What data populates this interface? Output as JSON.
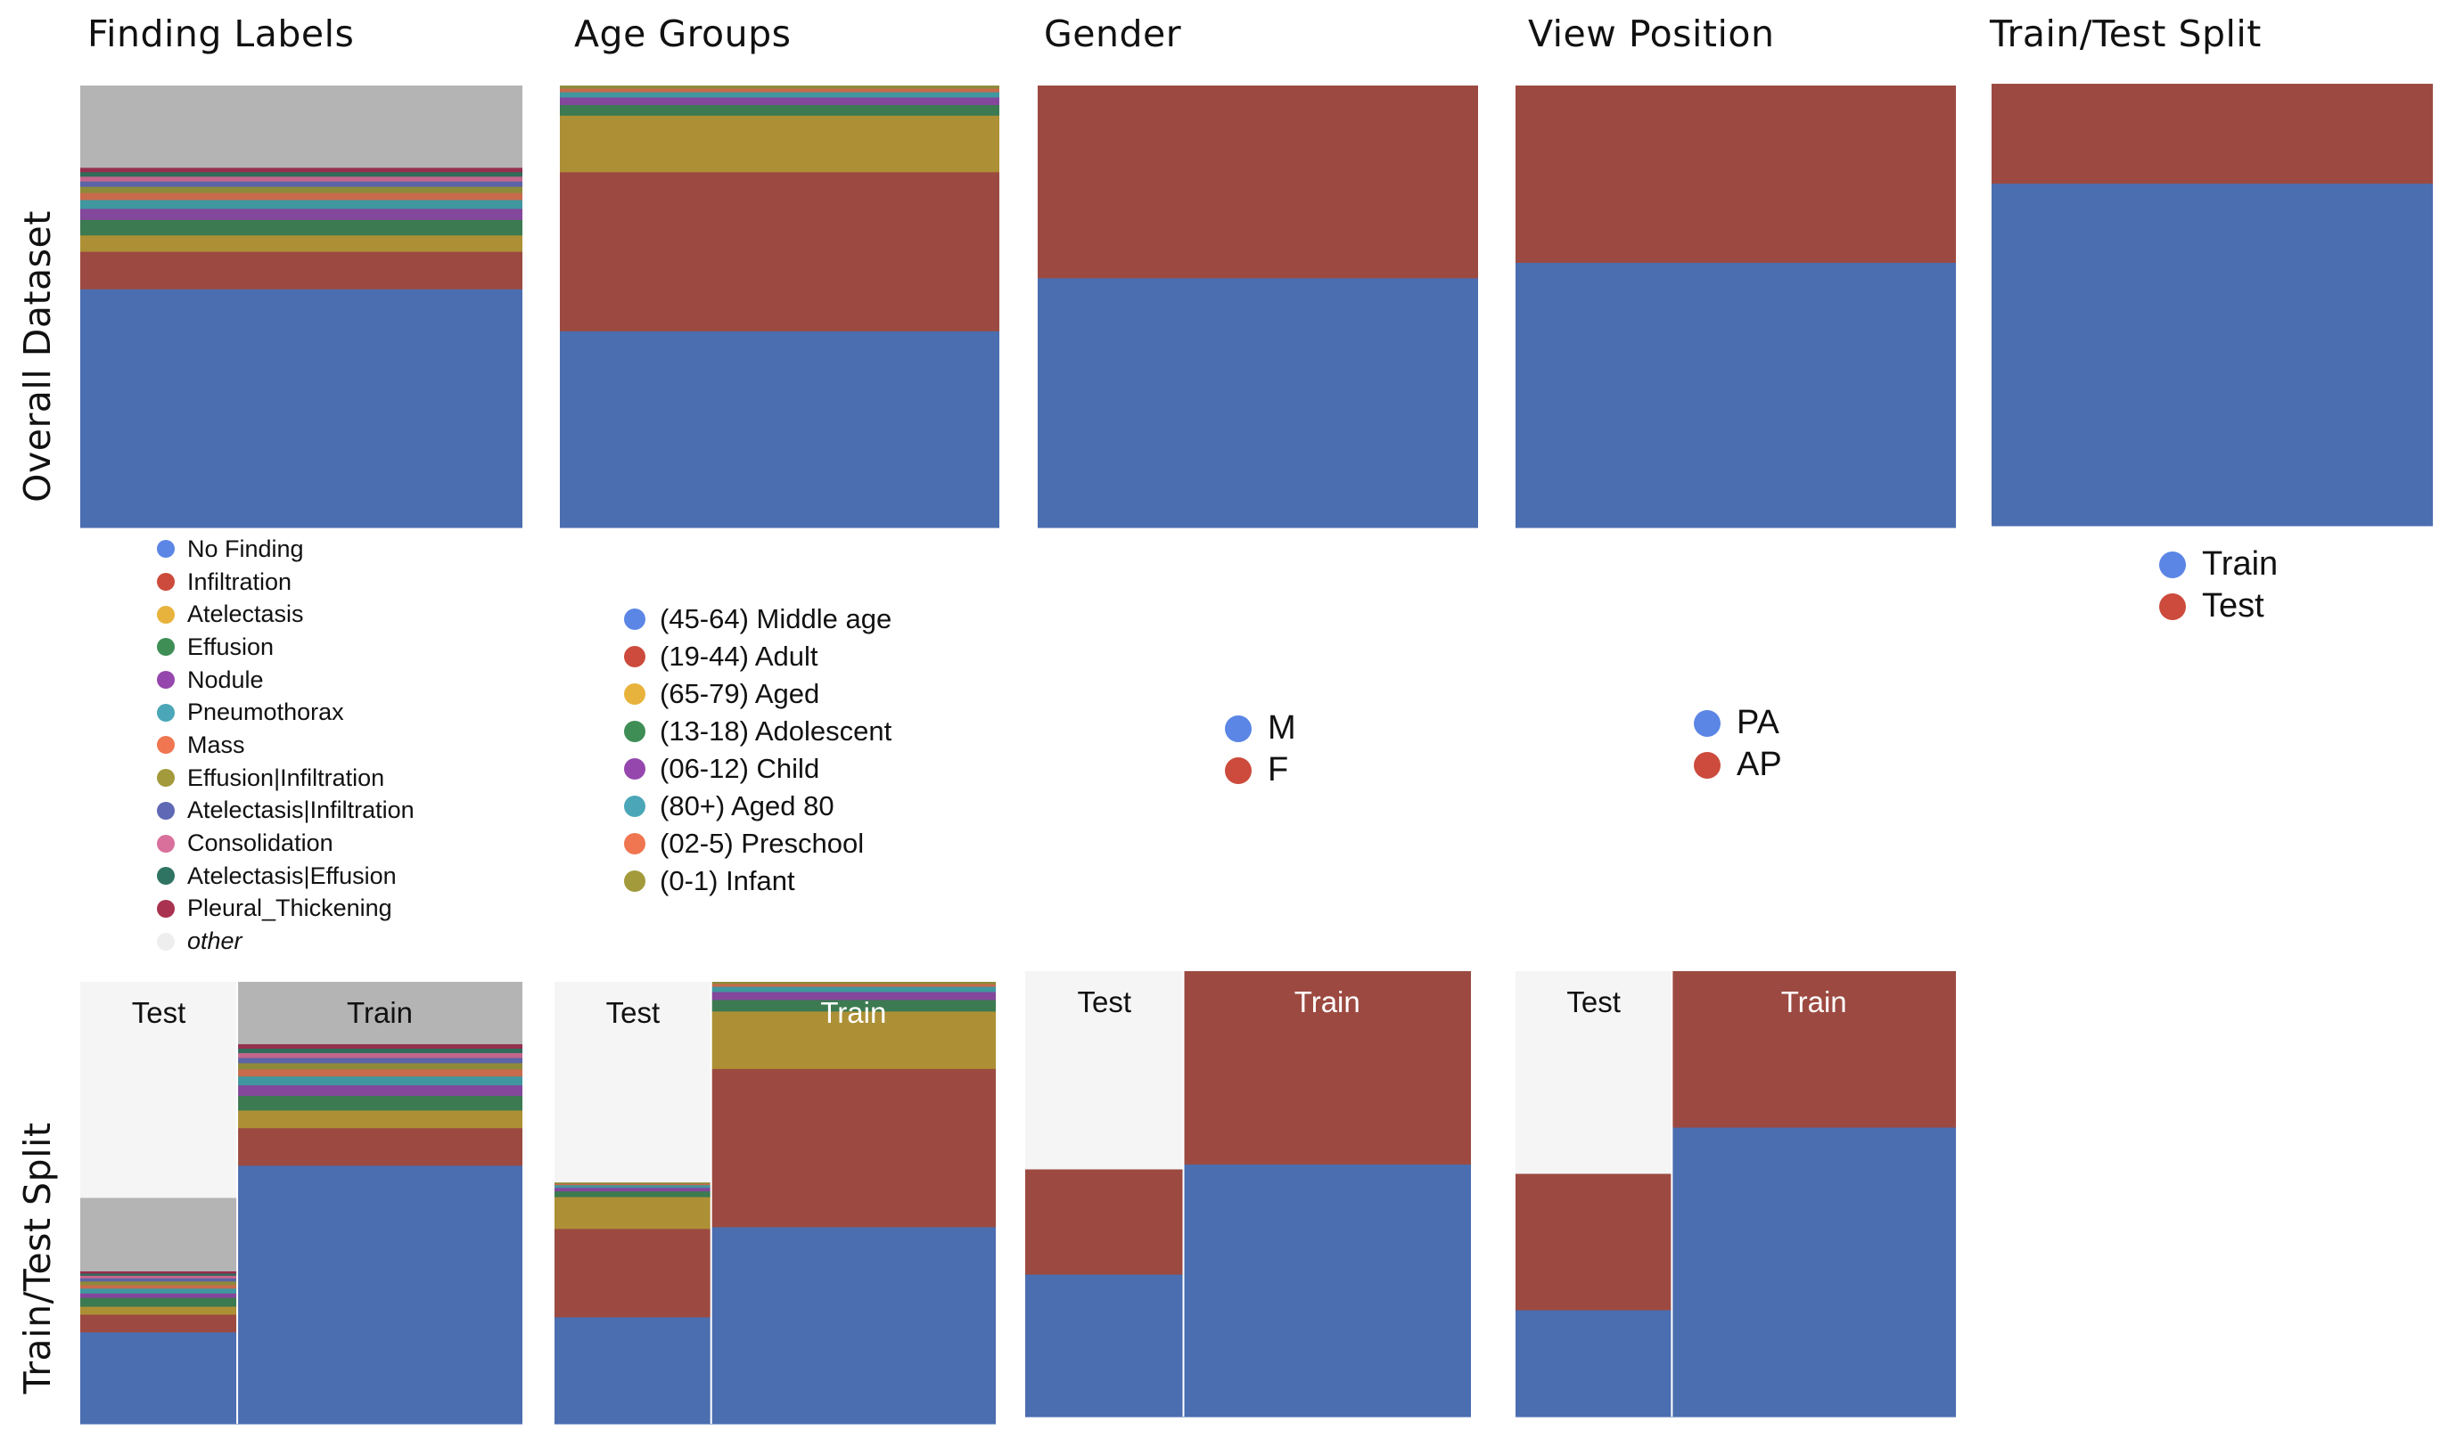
{
  "column_titles": [
    "Finding Labels",
    "Age Groups",
    "Gender",
    "View Position",
    "Train/Test Split"
  ],
  "row_titles": [
    "Overall Dataset",
    "Train/Test Split"
  ],
  "split_labels": {
    "test": "Test",
    "train": "Train"
  },
  "colors": {
    "blue": "#4b6eb0",
    "red": "#9c4a41",
    "gold": "#ad9035",
    "green": "#3c7a51",
    "purple": "#83479c",
    "teal": "#40979f",
    "orange": "#c76b4c",
    "olive": "#8e8a3a",
    "slate": "#5b64a6",
    "pink": "#c4658c",
    "darkgreen": "#316b5a",
    "crimson": "#952f4e",
    "grey": "#b4b4b4",
    "test_background": "#f5f5f5"
  },
  "legends": {
    "findings": [
      {
        "label": "No Finding",
        "color": "#5b86e5"
      },
      {
        "label": "Infiltration",
        "color": "#cc4b3c"
      },
      {
        "label": "Atelectasis",
        "color": "#e8b33c"
      },
      {
        "label": "Effusion",
        "color": "#3e8e55"
      },
      {
        "label": "Nodule",
        "color": "#9547ad"
      },
      {
        "label": "Pneumothorax",
        "color": "#4ba7b7"
      },
      {
        "label": "Mass",
        "color": "#ef7650"
      },
      {
        "label": "Effusion|Infiltration",
        "color": "#a29a3b"
      },
      {
        "label": "Atelectasis|Infiltration",
        "color": "#5e68b4"
      },
      {
        "label": "Consolidation",
        "color": "#d9709b"
      },
      {
        "label": "Atelectasis|Effusion",
        "color": "#2f7462"
      },
      {
        "label": "Pleural_Thickening",
        "color": "#a8324f"
      },
      {
        "label": "other",
        "color": "#eeeeee",
        "italic": true
      }
    ],
    "age": [
      {
        "label": "(45-64) Middle age",
        "color": "#5b86e5"
      },
      {
        "label": "(19-44) Adult",
        "color": "#cc4b3c"
      },
      {
        "label": "(65-79) Aged",
        "color": "#e8b33c"
      },
      {
        "label": "(13-18) Adolescent",
        "color": "#3e8e55"
      },
      {
        "label": "(06-12) Child",
        "color": "#9547ad"
      },
      {
        "label": "(80+) Aged 80",
        "color": "#4ba7b7"
      },
      {
        "label": "(02-5) Preschool",
        "color": "#ef7650"
      },
      {
        "label": "(0-1) Infant",
        "color": "#a29a3b"
      }
    ],
    "gender": [
      {
        "label": "M",
        "color": "#5b86e5"
      },
      {
        "label": "F",
        "color": "#cc4b3c"
      }
    ],
    "view": [
      {
        "label": "PA",
        "color": "#5b86e5"
      },
      {
        "label": "AP",
        "color": "#cc4b3c"
      }
    ],
    "split": [
      {
        "label": "Train",
        "color": "#5b86e5"
      },
      {
        "label": "Test",
        "color": "#cc4b3c"
      }
    ]
  },
  "chart_data": [
    {
      "type": "stacked-bar",
      "panel": "Overall Dataset / Finding Labels",
      "segments": [
        {
          "name": "No Finding",
          "color": "blue",
          "value": 0.54
        },
        {
          "name": "Infiltration",
          "color": "red",
          "value": 0.085
        },
        {
          "name": "Atelectasis",
          "color": "gold",
          "value": 0.037
        },
        {
          "name": "Effusion",
          "color": "green",
          "value": 0.035
        },
        {
          "name": "Nodule",
          "color": "purple",
          "value": 0.025
        },
        {
          "name": "Pneumothorax",
          "color": "teal",
          "value": 0.02
        },
        {
          "name": "Mass",
          "color": "orange",
          "value": 0.016
        },
        {
          "name": "Effusion|Infiltration",
          "color": "olive",
          "value": 0.014
        },
        {
          "name": "Atelectasis|Infiltration",
          "color": "slate",
          "value": 0.012
        },
        {
          "name": "Consolidation",
          "color": "pink",
          "value": 0.011
        },
        {
          "name": "Atelectasis|Effusion",
          "color": "darkgreen",
          "value": 0.01
        },
        {
          "name": "Pleural_Thickening",
          "color": "crimson",
          "value": 0.01
        },
        {
          "name": "other",
          "color": "grey",
          "value": 0.185
        }
      ]
    },
    {
      "type": "stacked-bar",
      "panel": "Overall Dataset / Age Groups",
      "segments": [
        {
          "name": "(45-64) Middle age",
          "color": "blue",
          "value": 0.445
        },
        {
          "name": "(19-44) Adult",
          "color": "red",
          "value": 0.36
        },
        {
          "name": "(65-79) Aged",
          "color": "gold",
          "value": 0.128
        },
        {
          "name": "(13-18) Adolescent",
          "color": "green",
          "value": 0.024
        },
        {
          "name": "(06-12) Child",
          "color": "purple",
          "value": 0.017
        },
        {
          "name": "(80+) Aged 80",
          "color": "teal",
          "value": 0.012
        },
        {
          "name": "(02-5) Preschool",
          "color": "orange",
          "value": 0.008
        },
        {
          "name": "(0-1) Infant",
          "color": "olive",
          "value": 0.006
        }
      ]
    },
    {
      "type": "stacked-bar",
      "panel": "Overall Dataset / Gender",
      "segments": [
        {
          "name": "M",
          "color": "blue",
          "value": 0.565
        },
        {
          "name": "F",
          "color": "red",
          "value": 0.435
        }
      ]
    },
    {
      "type": "stacked-bar",
      "panel": "Overall Dataset / View Position",
      "segments": [
        {
          "name": "PA",
          "color": "blue",
          "value": 0.6
        },
        {
          "name": "AP",
          "color": "red",
          "value": 0.4
        }
      ]
    },
    {
      "type": "stacked-bar",
      "panel": "Overall Dataset / Train/Test Split",
      "segments": [
        {
          "name": "Train",
          "color": "blue",
          "value": 0.775
        },
        {
          "name": "Test",
          "color": "red",
          "value": 0.225
        }
      ]
    },
    {
      "type": "marimekko",
      "panel": "Train/Test Split / Finding Labels",
      "columns": [
        {
          "name": "Test",
          "width": 0.355,
          "segments": [
            {
              "name": "No Finding",
              "color": "blue",
              "value": 0.208
            },
            {
              "name": "Infiltration",
              "color": "red",
              "value": 0.04
            },
            {
              "name": "Atelectasis",
              "color": "gold",
              "value": 0.018
            },
            {
              "name": "Effusion",
              "color": "green",
              "value": 0.02
            },
            {
              "name": "Nodule",
              "color": "purple",
              "value": 0.01
            },
            {
              "name": "Pneumothorax",
              "color": "teal",
              "value": 0.011
            },
            {
              "name": "Mass",
              "color": "orange",
              "value": 0.008
            },
            {
              "name": "Effusion|Infiltration",
              "color": "olive",
              "value": 0.008
            },
            {
              "name": "Atelectasis|Infiltration",
              "color": "slate",
              "value": 0.007
            },
            {
              "name": "Consolidation",
              "color": "pink",
              "value": 0.006
            },
            {
              "name": "Atelectasis|Effusion",
              "color": "darkgreen",
              "value": 0.005
            },
            {
              "name": "Pleural_Thickening",
              "color": "crimson",
              "value": 0.005
            },
            {
              "name": "other",
              "color": "grey",
              "value": 0.165
            }
          ]
        },
        {
          "name": "Train",
          "width": 0.645,
          "segments": [
            {
              "name": "No Finding",
              "color": "blue",
              "value": 0.585
            },
            {
              "name": "Infiltration",
              "color": "red",
              "value": 0.085
            },
            {
              "name": "Atelectasis",
              "color": "gold",
              "value": 0.04
            },
            {
              "name": "Effusion",
              "color": "green",
              "value": 0.033
            },
            {
              "name": "Nodule",
              "color": "purple",
              "value": 0.024
            },
            {
              "name": "Pneumothorax",
              "color": "teal",
              "value": 0.02
            },
            {
              "name": "Mass",
              "color": "orange",
              "value": 0.016
            },
            {
              "name": "Effusion|Infiltration",
              "color": "olive",
              "value": 0.014
            },
            {
              "name": "Atelectasis|Infiltration",
              "color": "slate",
              "value": 0.012
            },
            {
              "name": "Consolidation",
              "color": "pink",
              "value": 0.011
            },
            {
              "name": "Atelectasis|Effusion",
              "color": "darkgreen",
              "value": 0.01
            },
            {
              "name": "Pleural_Thickening",
              "color": "crimson",
              "value": 0.01
            },
            {
              "name": "other",
              "color": "grey",
              "value": 0.14
            }
          ]
        }
      ]
    },
    {
      "type": "marimekko",
      "panel": "Train/Test Split / Age Groups",
      "columns": [
        {
          "name": "Test",
          "width": 0.355,
          "segments": [
            {
              "name": "(45-64) Middle age",
              "color": "blue",
              "value": 0.242
            },
            {
              "name": "(19-44) Adult",
              "color": "red",
              "value": 0.2
            },
            {
              "name": "(65-79) Aged",
              "color": "gold",
              "value": 0.072
            },
            {
              "name": "(13-18) Adolescent",
              "color": "green",
              "value": 0.013
            },
            {
              "name": "(06-12) Child",
              "color": "purple",
              "value": 0.008
            },
            {
              "name": "(80+) Aged 80",
              "color": "teal",
              "value": 0.006
            },
            {
              "name": "(02-5) Preschool",
              "color": "orange",
              "value": 0.003
            },
            {
              "name": "(0-1) Infant",
              "color": "olive",
              "value": 0.002
            }
          ]
        },
        {
          "name": "Train",
          "width": 0.645,
          "segments": [
            {
              "name": "(45-64) Middle age",
              "color": "blue",
              "value": 0.446
            },
            {
              "name": "(19-44) Adult",
              "color": "red",
              "value": 0.358
            },
            {
              "name": "(65-79) Aged",
              "color": "gold",
              "value": 0.13
            },
            {
              "name": "(13-18) Adolescent",
              "color": "green",
              "value": 0.026
            },
            {
              "name": "(06-12) Child",
              "color": "purple",
              "value": 0.018
            },
            {
              "name": "(80+) Aged 80",
              "color": "teal",
              "value": 0.012
            },
            {
              "name": "(02-5) Preschool",
              "color": "orange",
              "value": 0.006
            },
            {
              "name": "(0-1) Infant",
              "color": "olive",
              "value": 0.004
            }
          ]
        }
      ]
    },
    {
      "type": "marimekko",
      "panel": "Train/Test Split / Gender",
      "columns": [
        {
          "name": "Test",
          "width": 0.355,
          "segments": [
            {
              "name": "M",
              "color": "blue",
              "value": 0.32
            },
            {
              "name": "F",
              "color": "red",
              "value": 0.235
            }
          ]
        },
        {
          "name": "Train",
          "width": 0.645,
          "segments": [
            {
              "name": "M",
              "color": "blue",
              "value": 0.567
            },
            {
              "name": "F",
              "color": "red",
              "value": 0.433
            }
          ]
        }
      ]
    },
    {
      "type": "marimekko",
      "panel": "Train/Test Split / View Position",
      "columns": [
        {
          "name": "Test",
          "width": 0.355,
          "segments": [
            {
              "name": "PA",
              "color": "blue",
              "value": 0.24
            },
            {
              "name": "AP",
              "color": "red",
              "value": 0.305
            }
          ]
        },
        {
          "name": "Train",
          "width": 0.645,
          "segments": [
            {
              "name": "PA",
              "color": "blue",
              "value": 0.65
            },
            {
              "name": "AP",
              "color": "red",
              "value": 0.35
            }
          ]
        }
      ]
    }
  ]
}
